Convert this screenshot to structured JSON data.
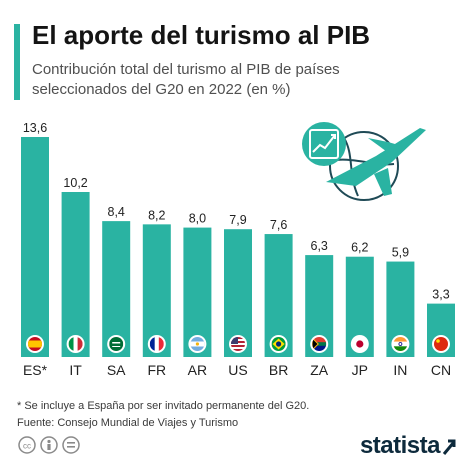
{
  "header": {
    "title": "El aporte del turismo al PIB",
    "subtitle": "Contribución total del turismo al PIB de países seleccionados del G20 en 2022 (en %)"
  },
  "colors": {
    "accent": "#2ab3a2",
    "bar": "#2ab3a2",
    "title": "#141414",
    "subtitle": "#505050"
  },
  "chart_data": {
    "type": "bar",
    "title": "",
    "xlabel": "",
    "ylabel": "",
    "categories": [
      "ES*",
      "IT",
      "SA",
      "FR",
      "AR",
      "US",
      "BR",
      "ZA",
      "JP",
      "IN",
      "CN"
    ],
    "values": [
      13.6,
      10.2,
      8.4,
      8.2,
      8.0,
      7.9,
      7.6,
      6.3,
      6.2,
      5.9,
      3.3
    ],
    "value_labels": [
      "13,6",
      "10,2",
      "8,4",
      "8,2",
      "8,0",
      "7,9",
      "7,6",
      "6,3",
      "6,2",
      "5,9",
      "3,3"
    ],
    "flag_icons": [
      "spain-flag-icon",
      "italy-flag-icon",
      "saudi-arabia-flag-icon",
      "france-flag-icon",
      "argentina-flag-icon",
      "usa-flag-icon",
      "brazil-flag-icon",
      "south-africa-flag-icon",
      "japan-flag-icon",
      "india-flag-icon",
      "china-flag-icon"
    ],
    "ylim": [
      0,
      13.6
    ],
    "grid": false,
    "legend": "none"
  },
  "footer": {
    "note": "* Se incluye a España por ser invitado permanente del G20.",
    "source": "Fuente: Consejo Mundial de Viajes y Turismo",
    "brand": "statista",
    "license_icons": [
      "cc-icon",
      "attribution-icon",
      "no-derivatives-icon"
    ]
  }
}
